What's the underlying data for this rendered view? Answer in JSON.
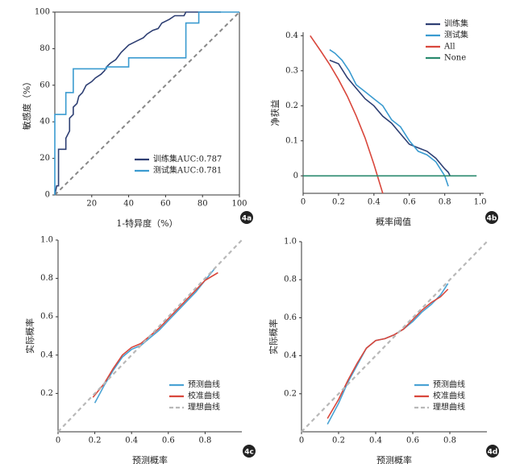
{
  "chart_data": [
    {
      "type": "line",
      "panel": "4a",
      "xlabel": "1-特异度（%）",
      "ylabel": "敏感度（%）",
      "xlim": [
        0,
        100
      ],
      "ylim": [
        0,
        100
      ],
      "xticks": [
        20,
        40,
        60,
        80,
        100
      ],
      "yticks": [
        0,
        20,
        40,
        60,
        80,
        100
      ],
      "box": true,
      "diagonal": true,
      "legend": "lower right",
      "series": [
        {
          "name": "训练集AUC:0.787",
          "color": "#2e3f73",
          "x": [
            0,
            1,
            2,
            2,
            6,
            6,
            8,
            8,
            10,
            10,
            12,
            13,
            15,
            17,
            20,
            22,
            25,
            27,
            28,
            30,
            33,
            36,
            38,
            40,
            44,
            48,
            50,
            53,
            56,
            58,
            62,
            65,
            70,
            71,
            90
          ],
          "values": [
            0,
            5,
            5,
            25,
            25,
            31,
            35,
            42,
            44,
            48,
            50,
            54,
            56,
            60,
            62,
            64,
            66,
            68,
            70,
            72,
            74,
            78,
            80,
            82,
            84,
            86,
            88,
            90,
            91,
            94,
            96,
            98,
            98,
            100,
            100
          ]
        },
        {
          "name": "测试集AUC:0.781",
          "color": "#3a9bd0",
          "x": [
            0,
            0,
            6,
            6,
            10,
            10,
            28,
            28,
            40,
            40,
            71,
            71,
            78,
            78,
            100
          ],
          "values": [
            0,
            44,
            44,
            56,
            56,
            69,
            69,
            70,
            70,
            75,
            75,
            94,
            94,
            100,
            100
          ]
        }
      ]
    },
    {
      "type": "line",
      "panel": "4b",
      "xlabel": "概率阈值",
      "ylabel": "净获益",
      "xlim": [
        0,
        1.02
      ],
      "ylim": [
        -0.05,
        0.41
      ],
      "xticks": [
        0,
        0.2,
        0.4,
        0.6,
        0.8,
        {
          "value": 1,
          "label": "1.0"
        }
      ],
      "yticks": [
        0,
        0.1,
        0.2,
        0.3,
        0.4
      ],
      "legend": "upper right",
      "series": [
        {
          "name": "训练集",
          "color": "#2e3f73",
          "x": [
            0.15,
            0.2,
            0.25,
            0.3,
            0.35,
            0.4,
            0.45,
            0.5,
            0.55,
            0.6,
            0.65,
            0.7,
            0.75,
            0.8,
            0.82,
            0.83
          ],
          "values": [
            0.33,
            0.32,
            0.28,
            0.25,
            0.22,
            0.2,
            0.17,
            0.15,
            0.12,
            0.09,
            0.08,
            0.07,
            0.05,
            0.02,
            0.01,
            0
          ]
        },
        {
          "name": "测试集",
          "color": "#3a9bd0",
          "x": [
            0.15,
            0.18,
            0.22,
            0.26,
            0.3,
            0.35,
            0.4,
            0.45,
            0.5,
            0.55,
            0.6,
            0.65,
            0.7,
            0.75,
            0.8,
            0.82
          ],
          "values": [
            0.36,
            0.35,
            0.33,
            0.3,
            0.26,
            0.24,
            0.22,
            0.2,
            0.16,
            0.14,
            0.1,
            0.07,
            0.06,
            0.04,
            0,
            -0.03
          ]
        },
        {
          "name": "All",
          "color": "#d9473c",
          "x": [
            0.04,
            0.1,
            0.15,
            0.2,
            0.25,
            0.3,
            0.35,
            0.4,
            0.45
          ],
          "values": [
            0.4,
            0.356,
            0.318,
            0.275,
            0.227,
            0.171,
            0.108,
            0.033,
            -0.05
          ]
        },
        {
          "name": "None",
          "color": "#2a8a6e",
          "x": [
            0,
            0.98
          ],
          "values": [
            0,
            0
          ]
        }
      ]
    },
    {
      "type": "line",
      "panel": "4c",
      "xlabel": "预测概率",
      "ylabel": "实际概率",
      "xlim": [
        0,
        1
      ],
      "ylim": [
        0,
        1
      ],
      "xticks": [
        0,
        0.2,
        0.4,
        0.6,
        0.8
      ],
      "yticks": [
        0.2,
        0.4,
        0.6,
        0.8,
        {
          "value": 1,
          "label": "1.0"
        }
      ],
      "legend": "lower right",
      "series": [
        {
          "name": "预测曲线",
          "color": "#4aa3d4",
          "x": [
            0.2,
            0.25,
            0.3,
            0.35,
            0.4,
            0.45,
            0.5,
            0.55,
            0.6,
            0.65,
            0.7,
            0.75,
            0.8,
            0.86
          ],
          "values": [
            0.15,
            0.24,
            0.32,
            0.39,
            0.43,
            0.45,
            0.49,
            0.53,
            0.58,
            0.63,
            0.68,
            0.73,
            0.79,
            0.86
          ]
        },
        {
          "name": "校准曲线",
          "color": "#d9473c",
          "x": [
            0.19,
            0.25,
            0.3,
            0.35,
            0.4,
            0.45,
            0.5,
            0.55,
            0.6,
            0.65,
            0.7,
            0.75,
            0.8,
            0.87
          ],
          "values": [
            0.18,
            0.25,
            0.33,
            0.4,
            0.44,
            0.46,
            0.5,
            0.54,
            0.59,
            0.64,
            0.69,
            0.74,
            0.79,
            0.83
          ]
        },
        {
          "name": "理想曲线",
          "color": "#b8b8b8",
          "dash": true,
          "x": [
            0,
            1
          ],
          "values": [
            0,
            1
          ]
        }
      ]
    },
    {
      "type": "line",
      "panel": "4d",
      "xlabel": "预测概率",
      "ylabel": "实际概率",
      "xlim": [
        0,
        1
      ],
      "ylim": [
        0,
        1
      ],
      "xticks": [
        0,
        0.2,
        0.4,
        0.6,
        0.8
      ],
      "yticks": [
        0.2,
        0.4,
        0.6,
        0.8,
        {
          "value": 1,
          "label": "1.0"
        }
      ],
      "legend": "lower right",
      "series": [
        {
          "name": "预测曲线",
          "color": "#4aa3d4",
          "x": [
            0.14,
            0.2,
            0.25,
            0.3,
            0.35,
            0.4,
            0.45,
            0.5,
            0.55,
            0.6,
            0.65,
            0.7,
            0.75,
            0.79
          ],
          "values": [
            0.04,
            0.15,
            0.26,
            0.35,
            0.44,
            0.48,
            0.49,
            0.51,
            0.54,
            0.58,
            0.63,
            0.67,
            0.72,
            0.78
          ]
        },
        {
          "name": "校准曲线",
          "color": "#d9473c",
          "x": [
            0.14,
            0.2,
            0.25,
            0.3,
            0.35,
            0.4,
            0.45,
            0.5,
            0.55,
            0.6,
            0.65,
            0.7,
            0.75,
            0.79
          ],
          "values": [
            0.07,
            0.17,
            0.27,
            0.36,
            0.44,
            0.48,
            0.49,
            0.51,
            0.54,
            0.59,
            0.64,
            0.68,
            0.71,
            0.75
          ]
        },
        {
          "name": "理想曲线",
          "color": "#b8b8b8",
          "dash": true,
          "x": [
            0,
            1
          ],
          "values": [
            0,
            1
          ]
        }
      ]
    }
  ]
}
